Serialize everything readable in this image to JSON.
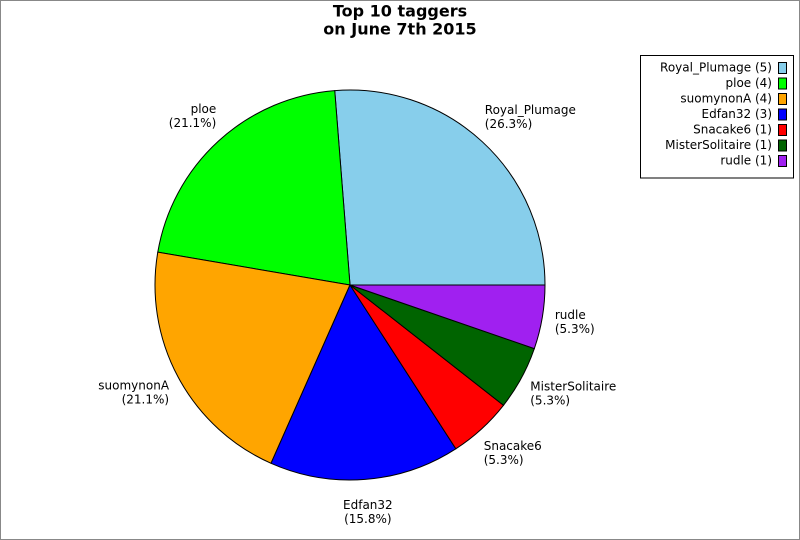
{
  "chart_data": {
    "type": "pie",
    "title": [
      "Top 10 taggers",
      "on June 7th 2015"
    ],
    "categories": [
      "Royal_Plumage",
      "ploe",
      "suomynonA",
      "Edfan32",
      "Snacake6",
      "MisterSolitaire",
      "rudle"
    ],
    "values": [
      26.3,
      21.1,
      21.1,
      15.8,
      5.3,
      5.3,
      5.3
    ],
    "value_labels": [
      "(26.3%)",
      "(21.1%)",
      "(21.1%)",
      "(15.8%)",
      "(5.3%)",
      "(5.3%)",
      "(5.3%)"
    ],
    "legend_labels": [
      "Royal_Plumage (5)",
      "ploe (4)",
      "suomynonA (4)",
      "Edfan32 (3)",
      "Snacake6 (1)",
      "MisterSolitaire (1)",
      "rudle (1)"
    ],
    "colors": [
      "#87ceeb",
      "#00ff00",
      "#ffa500",
      "#0000ff",
      "#ff0000",
      "#006400",
      "#a020f0"
    ],
    "legend": "top-right"
  }
}
